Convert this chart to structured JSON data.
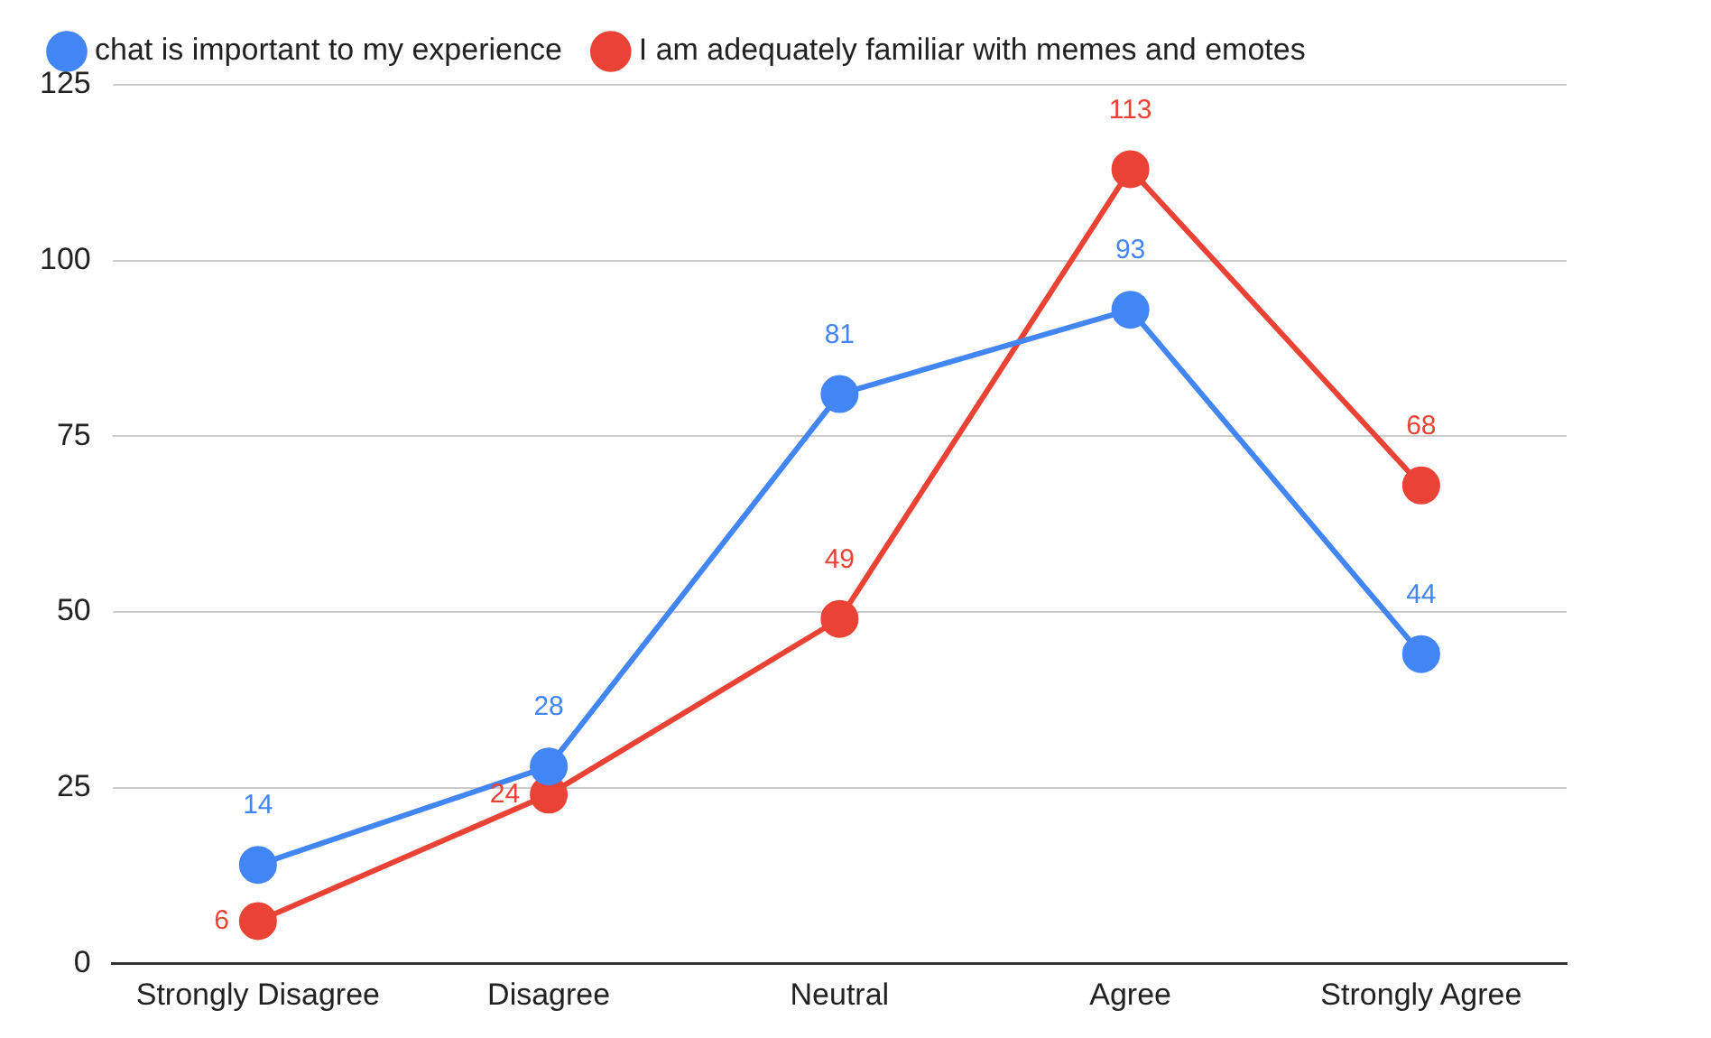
{
  "chart_data": {
    "type": "line",
    "categories": [
      "Strongly Disagree",
      "Disagree",
      "Neutral",
      "Agree",
      "Strongly Agree"
    ],
    "series": [
      {
        "name": "chat is important to my experience",
        "color": "#4285f4",
        "values": [
          14,
          28,
          81,
          93,
          44
        ]
      },
      {
        "name": "I am adequately familiar with memes and emotes",
        "color": "#ea4335",
        "values": [
          6,
          24,
          49,
          113,
          68
        ]
      }
    ],
    "ylim": [
      0,
      125
    ],
    "yticks": [
      0,
      25,
      50,
      75,
      100,
      125
    ],
    "grid": "y",
    "legend": "top left",
    "marker": "circle",
    "line_style": "solid",
    "data_labels": true
  }
}
